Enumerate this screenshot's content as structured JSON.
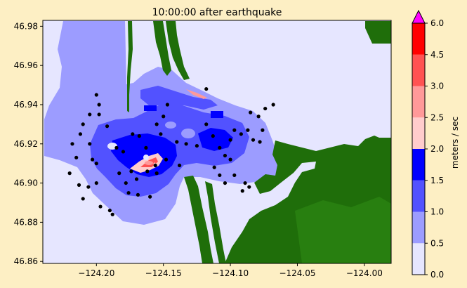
{
  "title": "10:00:00 after earthquake",
  "colors": {
    "background": "#FDEFC4",
    "land": "#1F6E0A",
    "water_still": "#E6E6FF"
  },
  "map": {
    "x_ticks": [
      {
        "value": -124.2,
        "label": "−124.20"
      },
      {
        "value": -124.15,
        "label": "−124.15"
      },
      {
        "value": -124.1,
        "label": "−124.10"
      },
      {
        "value": -124.05,
        "label": "−124.05"
      },
      {
        "value": -124.0,
        "label": "−124.00"
      }
    ],
    "y_ticks": [
      {
        "value": 46.98,
        "label": "46.98"
      },
      {
        "value": 46.96,
        "label": "46.96"
      },
      {
        "value": 46.94,
        "label": "46.94"
      },
      {
        "value": 46.92,
        "label": "46.92"
      },
      {
        "value": 46.9,
        "label": "46.90"
      },
      {
        "value": 46.88,
        "label": "46.88"
      },
      {
        "value": 46.86,
        "label": "46.86"
      }
    ],
    "xlim": [
      -124.24,
      -123.98
    ],
    "ylim": [
      46.859,
      46.983
    ],
    "gauges": [
      [
        -124.2,
        46.945
      ],
      [
        -124.198,
        46.94
      ],
      [
        -124.198,
        46.935
      ],
      [
        -124.192,
        46.929
      ],
      [
        -124.205,
        46.935
      ],
      [
        -124.21,
        46.93
      ],
      [
        -124.212,
        46.925
      ],
      [
        -124.218,
        46.92
      ],
      [
        -124.215,
        46.913
      ],
      [
        -124.205,
        46.92
      ],
      [
        -124.203,
        46.912
      ],
      [
        -124.2,
        46.91
      ],
      [
        -124.22,
        46.905
      ],
      [
        -124.213,
        46.899
      ],
      [
        -124.206,
        46.898
      ],
      [
        -124.21,
        46.892
      ],
      [
        -124.2,
        46.9
      ],
      [
        -124.197,
        46.888
      ],
      [
        -124.19,
        46.886
      ],
      [
        -124.188,
        46.884
      ],
      [
        -124.183,
        46.905
      ],
      [
        -124.178,
        46.9
      ],
      [
        -124.174,
        46.906
      ],
      [
        -124.17,
        46.902
      ],
      [
        -124.176,
        46.895
      ],
      [
        -124.169,
        46.894
      ],
      [
        -124.16,
        46.893
      ],
      [
        -124.185,
        46.918
      ],
      [
        -124.18,
        46.916
      ],
      [
        -124.173,
        46.925
      ],
      [
        -124.168,
        46.924
      ],
      [
        -124.163,
        46.918
      ],
      [
        -124.155,
        46.93
      ],
      [
        -124.15,
        46.934
      ],
      [
        -124.147,
        46.94
      ],
      [
        -124.152,
        46.925
      ],
      [
        -124.14,
        46.921
      ],
      [
        -124.133,
        46.92
      ],
      [
        -124.125,
        46.919
      ],
      [
        -124.118,
        46.93
      ],
      [
        -124.113,
        46.924
      ],
      [
        -124.108,
        46.918
      ],
      [
        -124.104,
        46.914
      ],
      [
        -124.1,
        46.912
      ],
      [
        -124.112,
        46.908
      ],
      [
        -124.108,
        46.904
      ],
      [
        -124.104,
        46.9
      ],
      [
        -124.097,
        46.904
      ],
      [
        -124.091,
        46.896
      ],
      [
        -124.089,
        46.9
      ],
      [
        -124.086,
        46.898
      ],
      [
        -124.1,
        46.922
      ],
      [
        -124.097,
        46.927
      ],
      [
        -124.092,
        46.925
      ],
      [
        -124.087,
        46.927
      ],
      [
        -124.085,
        46.936
      ],
      [
        -124.079,
        46.934
      ],
      [
        -124.074,
        46.938
      ],
      [
        -124.068,
        46.94
      ],
      [
        -124.083,
        46.922
      ],
      [
        -124.078,
        46.921
      ],
      [
        -124.076,
        46.927
      ],
      [
        -124.118,
        46.948
      ],
      [
        -124.138,
        46.909
      ],
      [
        -124.148,
        46.912
      ],
      [
        -124.156,
        46.909
      ],
      [
        -124.162,
        46.906
      ],
      [
        -124.155,
        46.905
      ]
    ]
  },
  "colorbar": {
    "label": "meters / sec",
    "ticks": [
      "0.0",
      "0.5",
      "1.0",
      "1.5",
      "2.0",
      "2.5",
      "3.0",
      "4.5",
      "6.0"
    ],
    "levels": [
      0.0,
      0.5,
      1.0,
      1.5,
      2.0,
      2.5,
      3.0,
      4.5,
      6.0
    ],
    "colors": [
      "#E6E6FF",
      "#9C9CFF",
      "#5252FF",
      "#0000FF",
      "#FFCCCC",
      "#FF9999",
      "#FF5252",
      "#FF0000"
    ],
    "extend_color": "#FF00FF"
  }
}
